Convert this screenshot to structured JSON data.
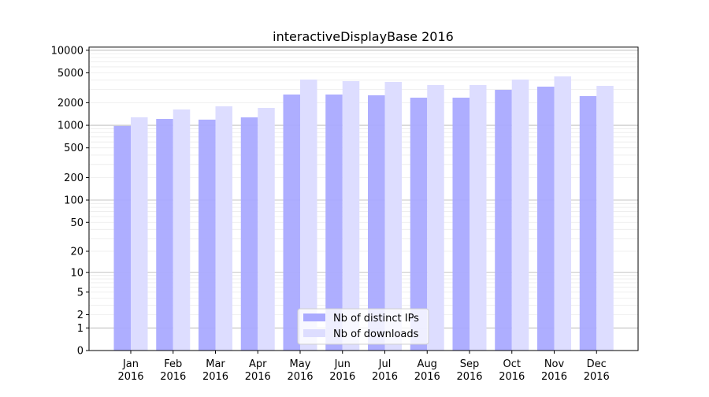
{
  "chart_data": {
    "type": "bar",
    "title": "interactiveDisplayBase 2016",
    "xlabel": "",
    "ylabel": "",
    "yscale": "symlog",
    "ylim": [
      0,
      11000
    ],
    "yticks": [
      0,
      1,
      2,
      5,
      10,
      20,
      50,
      100,
      200,
      500,
      1000,
      2000,
      5000,
      10000
    ],
    "grid": true,
    "legend_placement": "lower center",
    "categories": [
      "Jan\n2016",
      "Feb\n2016",
      "Mar\n2016",
      "Apr\n2016",
      "May\n2016",
      "Jun\n2016",
      "Jul\n2016",
      "Aug\n2016",
      "Sep\n2016",
      "Oct\n2016",
      "Nov\n2016",
      "Dec\n2016"
    ],
    "series": [
      {
        "name": "Nb of distinct IPs",
        "color": "#aaaaff",
        "values": [
          980,
          1215,
          1190,
          1275,
          2570,
          2570,
          2510,
          2335,
          2335,
          2970,
          3275,
          2450
        ]
      },
      {
        "name": "Nb of downloads",
        "color": "#ddddff",
        "values": [
          1280,
          1625,
          1790,
          1705,
          4070,
          3880,
          3785,
          3435,
          3435,
          4070,
          4485,
          3355
        ]
      }
    ]
  }
}
